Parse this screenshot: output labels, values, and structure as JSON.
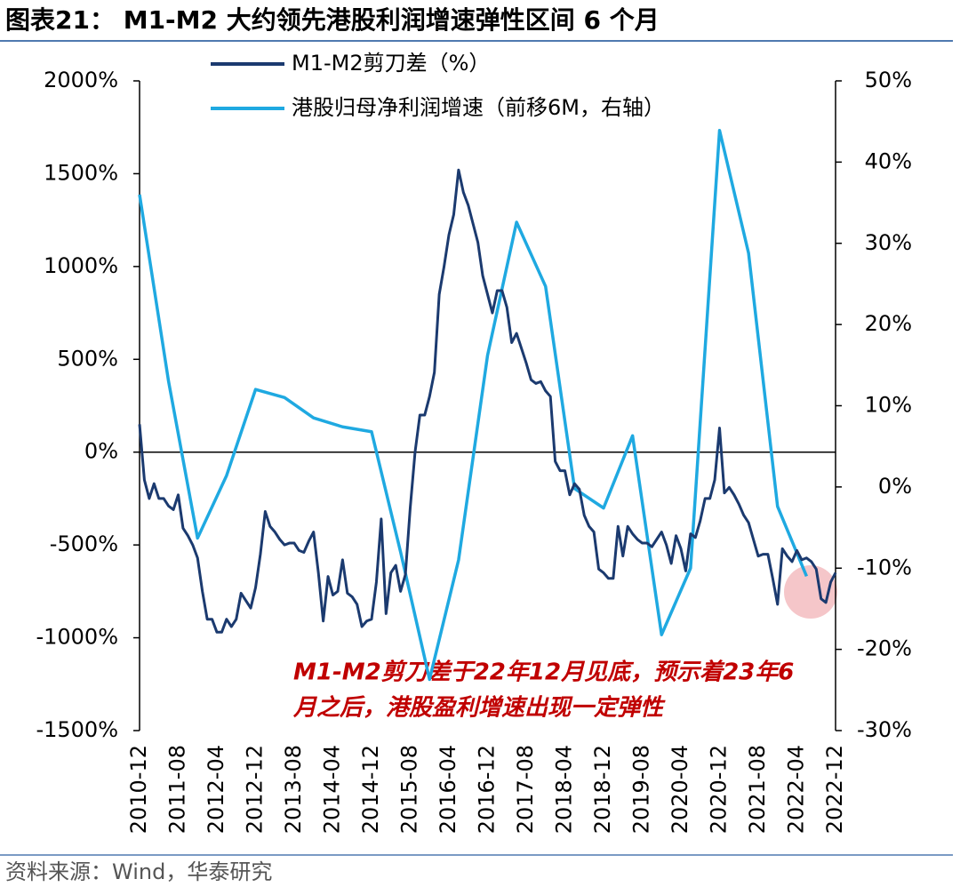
{
  "chart_data": {
    "type": "line",
    "title": "图表21： M1-M2 大约领先港股利润增速弹性区间 6 个月",
    "source": "资料来源：Wind，华泰研究",
    "annotation": [
      "M1-M2剪刀差于22年12月见底，预示着23年6",
      "月之后，港股盈利增速出现一定弹性"
    ],
    "xlim": [
      "2010-12",
      "2022-12"
    ],
    "xticks": [
      "2010-12",
      "2011-08",
      "2012-04",
      "2012-12",
      "2013-08",
      "2014-04",
      "2014-12",
      "2015-08",
      "2016-04",
      "2016-12",
      "2017-08",
      "2018-04",
      "2018-12",
      "2019-08",
      "2020-04",
      "2020-12",
      "2021-08",
      "2022-04",
      "2022-12"
    ],
    "ylim": [
      -1500,
      2000
    ],
    "yticks": [
      {
        "value": -1500,
        "label": "-1500%"
      },
      {
        "value": -1000,
        "label": "-1000%"
      },
      {
        "value": -500,
        "label": "-500%"
      },
      {
        "value": 0,
        "label": "0%"
      },
      {
        "value": 500,
        "label": "500%"
      },
      {
        "value": 1000,
        "label": "1000%"
      },
      {
        "value": 1500,
        "label": "1500%"
      },
      {
        "value": 2000,
        "label": "2000%"
      }
    ],
    "y2lim": [
      -30,
      50
    ],
    "y2ticks": [
      {
        "value": -30,
        "label": "-30%"
      },
      {
        "value": -20,
        "label": "-20%"
      },
      {
        "value": -10,
        "label": "-10%"
      },
      {
        "value": 0,
        "label": "0%"
      },
      {
        "value": 10,
        "label": "10%"
      },
      {
        "value": 20,
        "label": "20%"
      },
      {
        "value": 30,
        "label": "30%"
      },
      {
        "value": 40,
        "label": "40%"
      },
      {
        "value": 50,
        "label": "50%"
      }
    ],
    "legend": "top",
    "series": [
      {
        "name": "M1-M2剪刀差（%）",
        "color": "#1b3a6f",
        "x": [
          "2010-12",
          "2011-01",
          "2011-02",
          "2011-03",
          "2011-04",
          "2011-05",
          "2011-06",
          "2011-07",
          "2011-08",
          "2011-09",
          "2011-10",
          "2011-11",
          "2011-12",
          "2012-01",
          "2012-02",
          "2012-03",
          "2012-04",
          "2012-05",
          "2012-06",
          "2012-07",
          "2012-08",
          "2012-09",
          "2012-10",
          "2012-11",
          "2012-12",
          "2013-01",
          "2013-02",
          "2013-03",
          "2013-04",
          "2013-05",
          "2013-06",
          "2013-07",
          "2013-08",
          "2013-09",
          "2013-10",
          "2013-11",
          "2013-12",
          "2014-01",
          "2014-02",
          "2014-03",
          "2014-04",
          "2014-05",
          "2014-06",
          "2014-07",
          "2014-08",
          "2014-09",
          "2014-10",
          "2014-11",
          "2014-12",
          "2015-01",
          "2015-02",
          "2015-03",
          "2015-04",
          "2015-05",
          "2015-06",
          "2015-07",
          "2015-08",
          "2015-09",
          "2015-10",
          "2015-11",
          "2015-12",
          "2016-01",
          "2016-02",
          "2016-03",
          "2016-04",
          "2016-05",
          "2016-06",
          "2016-07",
          "2016-08",
          "2016-09",
          "2016-10",
          "2016-11",
          "2016-12",
          "2017-01",
          "2017-02",
          "2017-03",
          "2017-04",
          "2017-05",
          "2017-06",
          "2017-07",
          "2017-08",
          "2017-09",
          "2017-10",
          "2017-11",
          "2017-12",
          "2018-01",
          "2018-02",
          "2018-03",
          "2018-04",
          "2018-05",
          "2018-06",
          "2018-07",
          "2018-08",
          "2018-09",
          "2018-10",
          "2018-11",
          "2018-12",
          "2019-01",
          "2019-02",
          "2019-03",
          "2019-04",
          "2019-05",
          "2019-06",
          "2019-07",
          "2019-08",
          "2019-09",
          "2019-10",
          "2019-11",
          "2019-12",
          "2020-01",
          "2020-02",
          "2020-03",
          "2020-04",
          "2020-05",
          "2020-06",
          "2020-07",
          "2020-08",
          "2020-09",
          "2020-10",
          "2020-11",
          "2020-12",
          "2021-01",
          "2021-02",
          "2021-03",
          "2021-04",
          "2021-05",
          "2021-06",
          "2021-07",
          "2021-08",
          "2021-09",
          "2021-10",
          "2021-11",
          "2021-12",
          "2022-01",
          "2022-02",
          "2022-03",
          "2022-04",
          "2022-05",
          "2022-06",
          "2022-07",
          "2022-08",
          "2022-09",
          "2022-10",
          "2022-11",
          "2022-12"
        ],
        "values": [
          150,
          -150,
          -250,
          -170,
          -250,
          -250,
          -290,
          -310,
          -230,
          -410,
          -450,
          -500,
          -570,
          -750,
          -900,
          -900,
          -970,
          -970,
          -900,
          -940,
          -900,
          -760,
          -800,
          -840,
          -730,
          -550,
          -320,
          -400,
          -430,
          -470,
          -500,
          -490,
          -490,
          -530,
          -540,
          -480,
          -430,
          -650,
          -910,
          -670,
          -770,
          -750,
          -580,
          -760,
          -780,
          -820,
          -940,
          -910,
          -900,
          -700,
          -360,
          -870,
          -650,
          -610,
          -750,
          -660,
          -300,
          0,
          200,
          200,
          300,
          430,
          850,
          1000,
          1170,
          1280,
          1520,
          1400,
          1330,
          1230,
          1130,
          950,
          850,
          750,
          870,
          870,
          780,
          590,
          640,
          560,
          480,
          390,
          370,
          380,
          330,
          300,
          -50,
          -100,
          -100,
          -230,
          -170,
          -200,
          -340,
          -400,
          -430,
          -630,
          -650,
          -680,
          -680,
          -400,
          -560,
          -400,
          -440,
          -470,
          -490,
          -490,
          -510,
          -470,
          -430,
          -500,
          -600,
          -450,
          -520,
          -640,
          -440,
          -460,
          -370,
          -250,
          -250,
          -150,
          130,
          -220,
          -190,
          -230,
          -280,
          -340,
          -380,
          -470,
          -560,
          -550,
          -550,
          -680,
          -820,
          -520,
          -560,
          -590,
          -530,
          -580,
          -570,
          -590,
          -630,
          -790,
          -810,
          -700,
          -650
        ]
      },
      {
        "name": "港股归母净利润增速（前移6M，右轴）",
        "color": "#1fa9e1",
        "axis": "y2",
        "x": [
          "2010-12",
          "2011-06",
          "2011-12",
          "2012-06",
          "2012-12",
          "2013-06",
          "2013-12",
          "2014-06",
          "2014-12",
          "2015-06",
          "2015-12",
          "2016-06",
          "2016-12",
          "2017-06",
          "2017-12",
          "2018-06",
          "2018-12",
          "2019-06",
          "2019-12",
          "2020-06",
          "2020-12",
          "2021-06",
          "2021-12",
          "2022-06"
        ],
        "values": [
          36,
          13,
          -6.3,
          1.4,
          12,
          11,
          8.5,
          7.4,
          6.8,
          -8,
          -23.7,
          -9,
          16.2,
          32.6,
          24.7,
          -0.2,
          -2.6,
          6.3,
          -18.2,
          -10,
          43.9,
          28.8,
          -2.4,
          -11
        ]
      }
    ]
  }
}
